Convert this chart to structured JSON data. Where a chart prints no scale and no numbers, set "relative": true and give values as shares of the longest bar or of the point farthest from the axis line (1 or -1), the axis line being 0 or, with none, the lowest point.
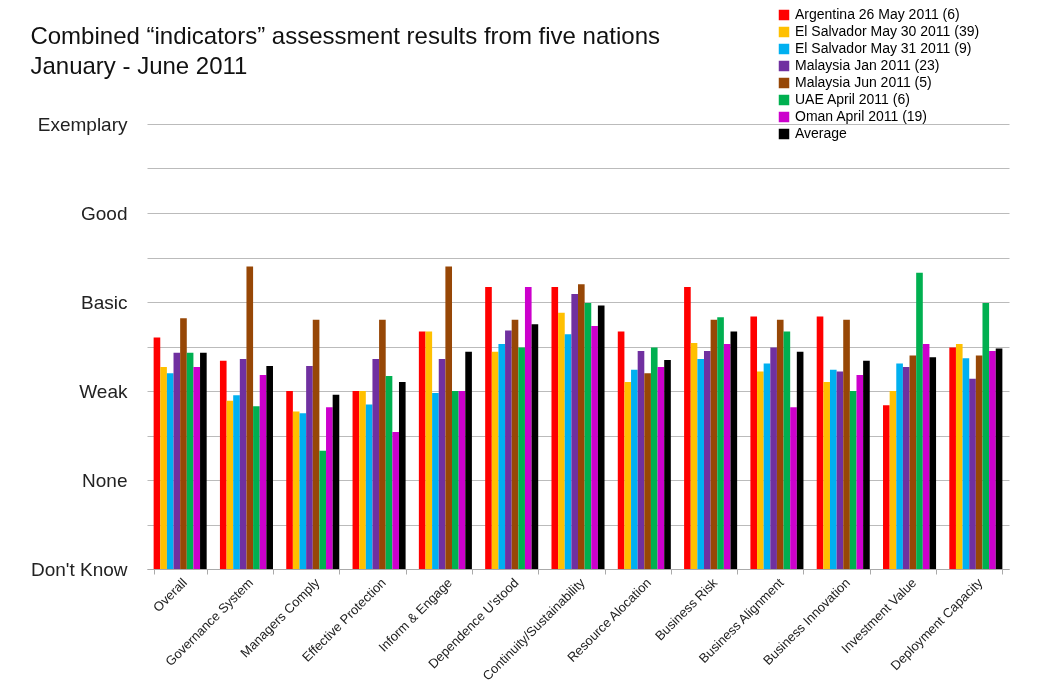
{
  "chart_data": {
    "type": "bar",
    "title": "Combined “indicators” assessment results from five nations",
    "subtitle": "January - June 2011",
    "categories": [
      "Overall",
      "Governance System",
      "Managers Comply",
      "Effective Protection",
      "Inform & Engage",
      "Dependence U'stood",
      "Continuity/Sustainability",
      "Resource Alocation",
      "Business Risk",
      "Business Alignment",
      "Business Innovation",
      "Investment Value",
      "Deployment Capacity"
    ],
    "relative": true,
    "series": [
      {
        "name": "Argentina 26 May 2011 (6)",
        "color": "#ff0000",
        "values": [
          0.765,
          0.688,
          0.588,
          0.588,
          0.785,
          0.932,
          0.932,
          0.785,
          0.932,
          0.835,
          0.835,
          0.541,
          0.732
        ]
      },
      {
        "name": "El Salvador May 30 2011 (39)",
        "color": "#ffc000",
        "values": [
          0.668,
          0.556,
          0.521,
          0.588,
          0.785,
          0.718,
          0.847,
          0.618,
          0.747,
          0.653,
          0.618,
          0.588,
          0.744
        ]
      },
      {
        "name": "El Salvador May 31 2011 (9)",
        "color": "#00b0f0",
        "values": [
          0.647,
          0.574,
          0.515,
          0.544,
          0.582,
          0.744,
          0.776,
          0.659,
          0.694,
          0.679,
          0.659,
          0.679,
          0.697
        ]
      },
      {
        "name": "Malaysia Jan 2011 (23)",
        "color": "#7030a0",
        "values": [
          0.715,
          0.694,
          0.671,
          0.694,
          0.694,
          0.788,
          0.909,
          0.721,
          0.721,
          0.732,
          0.653,
          0.668,
          0.629
        ]
      },
      {
        "name": "Malaysia Jun 2011 (5)",
        "color": "#974706",
        "values": [
          0.829,
          1,
          0.824,
          0.824,
          1,
          0.824,
          0.941,
          0.647,
          0.824,
          0.824,
          0.824,
          0.706,
          0.706
        ]
      },
      {
        "name": "UAE April 2011 (6)",
        "color": "#00b050",
        "values": [
          0.715,
          0.538,
          0.391,
          0.638,
          0.588,
          0.732,
          0.879,
          0.732,
          0.832,
          0.785,
          0.588,
          0.979,
          0.879
        ]
      },
      {
        "name": "Oman April 2011 (19)",
        "color": "#cc00cc",
        "values": [
          0.668,
          0.641,
          0.535,
          0.453,
          0.588,
          0.932,
          0.803,
          0.668,
          0.744,
          0.535,
          0.641,
          0.744,
          0.721
        ]
      },
      {
        "name": "Average",
        "color": "#000000",
        "values": [
          0.715,
          0.671,
          0.576,
          0.618,
          0.718,
          0.809,
          0.871,
          0.691,
          0.785,
          0.718,
          0.688,
          0.7,
          0.729
        ]
      }
    ],
    "ref_lines": [
      {
        "axis": "y",
        "value": 0,
        "label": "Don't Know",
        "color": "#bbbbbb"
      },
      {
        "axis": "y",
        "value": 0.147,
        "color": "#bbbbbb"
      },
      {
        "axis": "y",
        "value": 0.294,
        "label": "None",
        "color": "#bbbbbb"
      },
      {
        "axis": "y",
        "value": 0.441,
        "color": "#bbbbbb"
      },
      {
        "axis": "y",
        "value": 0.588,
        "label": "Weak",
        "color": "#bbbbbb"
      },
      {
        "axis": "y",
        "value": 0.735,
        "color": "#bbbbbb"
      },
      {
        "axis": "y",
        "value": 0.882,
        "label": "Basic",
        "color": "#bbbbbb"
      },
      {
        "axis": "y",
        "value": 1.029,
        "color": "#bbbbbb"
      },
      {
        "axis": "y",
        "value": 1.176,
        "label": "Good",
        "color": "#bbbbbb"
      },
      {
        "axis": "y",
        "value": 1.324,
        "color": "#bbbbbb"
      },
      {
        "axis": "y",
        "value": 1.471,
        "label": "Exemplary",
        "color": "#bbbbbb"
      }
    ],
    "legend": "top right"
  }
}
